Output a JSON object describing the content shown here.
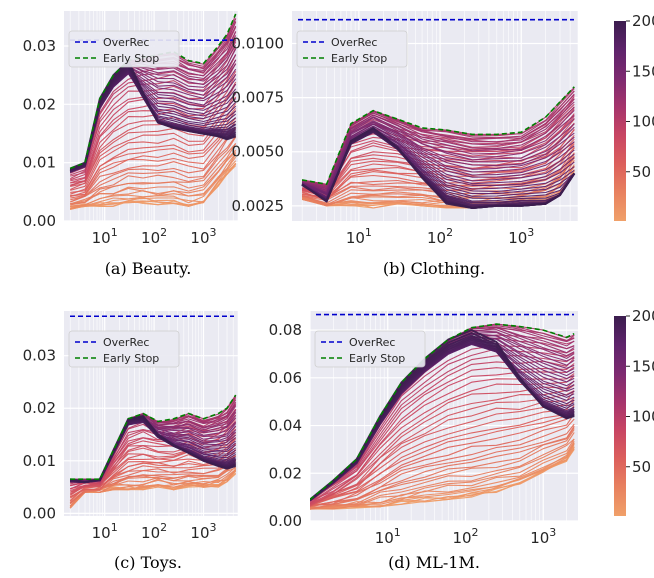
{
  "chart_data": [
    {
      "type": "line",
      "caption": "(a) Beauty.",
      "xscale": "log",
      "xlim": [
        1.5,
        5000
      ],
      "ylim": [
        0,
        0.036
      ],
      "ytick_labels": [
        "0.00",
        "0.01",
        "0.02",
        "0.03"
      ],
      "yticks": [
        0,
        0.01,
        0.02,
        0.03
      ],
      "xtick_exps": [
        1,
        2,
        3
      ],
      "legend": [
        "OverRec",
        "Early Stop"
      ],
      "legend_placement": "upper-left",
      "grid": true,
      "overrec": 0.031,
      "early_stop": {
        "x": [
          2,
          4,
          8,
          15,
          30,
          60,
          120,
          250,
          500,
          1000,
          2000,
          3000,
          4500
        ],
        "y": [
          0.009,
          0.01,
          0.021,
          0.025,
          0.0275,
          0.028,
          0.0285,
          0.029,
          0.0275,
          0.027,
          0.03,
          0.032,
          0.0355
        ]
      },
      "final_epoch": {
        "x": [
          2,
          4,
          8,
          15,
          30,
          60,
          120,
          250,
          500,
          1000,
          2000,
          3000,
          4500
        ],
        "y": [
          0.009,
          0.01,
          0.021,
          0.025,
          0.0275,
          0.022,
          0.017,
          0.016,
          0.0155,
          0.015,
          0.0145,
          0.014,
          0.0145
        ]
      },
      "lowest_run": {
        "x": [
          2,
          4,
          8,
          15,
          30,
          60,
          120,
          250,
          500,
          1000,
          2000,
          3000,
          4500
        ],
        "y": [
          0.002,
          0.0025,
          0.0025,
          0.0025,
          0.003,
          0.003,
          0.0028,
          0.003,
          0.0025,
          0.003,
          0.006,
          0.008,
          0.0095
        ]
      }
    },
    {
      "type": "line",
      "caption": "(b) Clothing.",
      "xscale": "log",
      "xlim": [
        1.5,
        5000
      ],
      "ylim": [
        0.0018,
        0.0115
      ],
      "ytick_labels": [
        "0.0025",
        "0.0050",
        "0.0075",
        "0.0100"
      ],
      "yticks": [
        0.0025,
        0.005,
        0.0075,
        0.01
      ],
      "xtick_exps": [
        1,
        2,
        3
      ],
      "legend": [
        "OverRec",
        "Early Stop"
      ],
      "legend_placement": "upper-left",
      "grid": true,
      "overrec": 0.0111,
      "early_stop": {
        "x": [
          2,
          4,
          8,
          15,
          30,
          60,
          120,
          250,
          500,
          1000,
          2000,
          3000,
          4500
        ],
        "y": [
          0.0037,
          0.0035,
          0.0063,
          0.0069,
          0.0065,
          0.0061,
          0.006,
          0.0058,
          0.0058,
          0.0059,
          0.0066,
          0.0073,
          0.008
        ]
      },
      "final_epoch": {
        "x": [
          2,
          4,
          8,
          15,
          30,
          60,
          120,
          250,
          500,
          1000,
          2000,
          3000,
          4500
        ],
        "y": [
          0.0035,
          0.0027,
          0.0055,
          0.0061,
          0.0052,
          0.0038,
          0.0026,
          0.0022,
          0.0022,
          0.0023,
          0.0022,
          0.0023,
          0.0026
        ]
      },
      "lowest_run": {
        "x": [
          2,
          4,
          8,
          15,
          30,
          60,
          120,
          250,
          500,
          1000,
          2000,
          3000,
          4500
        ],
        "y": [
          0.0028,
          0.0025,
          0.0025,
          0.0024,
          0.0025,
          0.0025,
          0.0024,
          0.0024,
          0.0025,
          0.0025,
          0.0026,
          0.003,
          0.004
        ]
      }
    },
    {
      "type": "line",
      "caption": "(c) Toys.",
      "xscale": "log",
      "xlim": [
        1.5,
        5000
      ],
      "ylim": [
        -0.0005,
        0.0385
      ],
      "ytick_labels": [
        "0.00",
        "0.01",
        "0.02",
        "0.03"
      ],
      "yticks": [
        0,
        0.01,
        0.02,
        0.03
      ],
      "xtick_exps": [
        1,
        2,
        3
      ],
      "legend": [
        "OverRec",
        "Early Stop"
      ],
      "legend_placement": "upper-left",
      "grid": true,
      "overrec": 0.0375,
      "early_stop": {
        "x": [
          2,
          4,
          8,
          15,
          30,
          60,
          120,
          250,
          500,
          1000,
          2000,
          3000,
          4500
        ],
        "y": [
          0.0065,
          0.0065,
          0.0065,
          0.012,
          0.018,
          0.019,
          0.0175,
          0.018,
          0.019,
          0.018,
          0.019,
          0.02,
          0.0225
        ]
      },
      "final_epoch": {
        "x": [
          2,
          4,
          8,
          15,
          30,
          60,
          120,
          250,
          500,
          1000,
          2000,
          3000,
          4500
        ],
        "y": [
          0.0065,
          0.006,
          0.0065,
          0.012,
          0.018,
          0.0185,
          0.015,
          0.013,
          0.0115,
          0.01,
          0.009,
          0.0085,
          0.009
        ]
      },
      "lowest_run": {
        "x": [
          2,
          4,
          8,
          15,
          30,
          60,
          120,
          250,
          500,
          1000,
          2000,
          3000,
          4500
        ],
        "y": [
          0.001,
          0.004,
          0.004,
          0.0045,
          0.0045,
          0.0045,
          0.005,
          0.0045,
          0.005,
          0.0048,
          0.005,
          0.006,
          0.0075
        ]
      }
    },
    {
      "type": "line",
      "caption": "(d) ML-1M.",
      "xscale": "log",
      "xlim": [
        1,
        2800
      ],
      "ylim": [
        0,
        0.088
      ],
      "ytick_labels": [
        "0.00",
        "0.02",
        "0.04",
        "0.06",
        "0.08"
      ],
      "yticks": [
        0,
        0.02,
        0.04,
        0.06,
        0.08
      ],
      "xtick_exps": [
        1,
        2,
        3
      ],
      "legend": [
        "OverRec",
        "Early Stop"
      ],
      "legend_placement": "upper-left",
      "grid": true,
      "overrec": 0.0865,
      "early_stop": {
        "x": [
          1,
          2,
          4,
          8,
          15,
          30,
          60,
          120,
          250,
          500,
          1000,
          2000,
          2500
        ],
        "y": [
          0.009,
          0.017,
          0.026,
          0.044,
          0.058,
          0.068,
          0.076,
          0.081,
          0.0825,
          0.0815,
          0.08,
          0.077,
          0.0785
        ]
      },
      "final_epoch": {
        "x": [
          1,
          2,
          4,
          8,
          15,
          30,
          60,
          120,
          250,
          500,
          1000,
          2000,
          2500
        ],
        "y": [
          0.009,
          0.017,
          0.026,
          0.044,
          0.058,
          0.068,
          0.076,
          0.08,
          0.075,
          0.06,
          0.048,
          0.043,
          0.044
        ]
      },
      "lowest_run": {
        "x": [
          1,
          2,
          4,
          8,
          15,
          30,
          60,
          120,
          250,
          500,
          1000,
          2000,
          2500
        ],
        "y": [
          0.005,
          0.005,
          0.0055,
          0.006,
          0.007,
          0.008,
          0.009,
          0.01,
          0.012,
          0.015,
          0.02,
          0.025,
          0.03
        ]
      }
    }
  ],
  "colorbar": {
    "min": 1,
    "max": 200,
    "tick_values": [
      50,
      100,
      150,
      200
    ],
    "tick_labels": [
      "50",
      "100",
      "150",
      "200"
    ],
    "colormap": "flare",
    "stops": [
      "#f0a069",
      "#e8815f",
      "#dc5f5c",
      "#c84563",
      "#a5346c",
      "#7d2a70",
      "#5e236b",
      "#3b1d4e"
    ]
  },
  "colors": {
    "plot_bg": "#eaeaf2",
    "grid": "#ffffff",
    "overrec": "#0000cc",
    "early_stop": "#008000"
  }
}
